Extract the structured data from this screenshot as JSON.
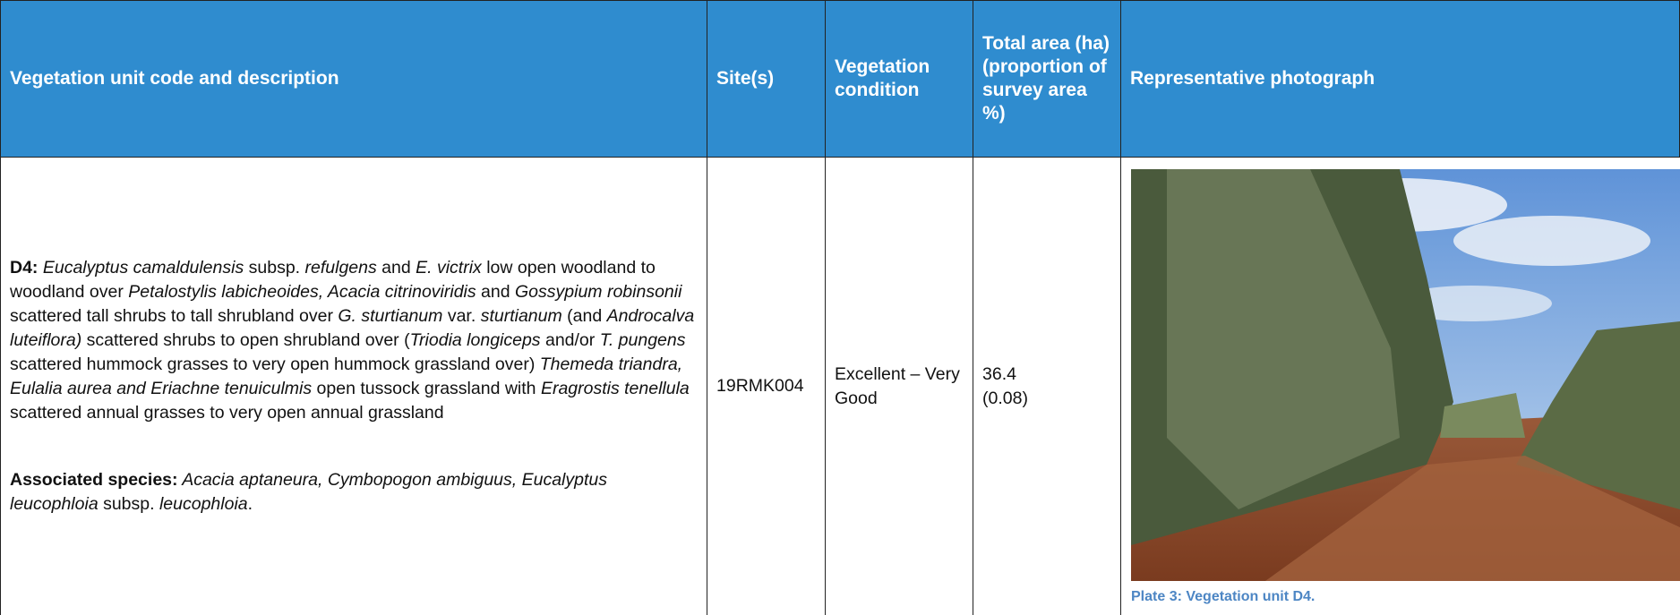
{
  "table": {
    "header": [
      "Vegetation unit code and description",
      "Site(s)",
      "Vegetation condition",
      "Total area (ha) (proportion of survey area %)",
      "Representative photograph"
    ],
    "rows": [
      {
        "description": [
          [
            {
              "style": "b",
              "text": "D4:"
            },
            {
              "style": "i",
              "text": " Eucalyptus camaldulensis"
            },
            {
              "style": "n",
              "text": " subsp. "
            },
            {
              "style": "i",
              "text": "refulgens"
            },
            {
              "style": "n",
              "text": " and "
            },
            {
              "style": "i",
              "text": "E. victrix"
            },
            {
              "style": "n",
              "text": " low open woodland to woodland over "
            },
            {
              "style": "i",
              "text": "Petalostylis labicheoides, Acacia citrinoviridis"
            },
            {
              "style": "n",
              "text": " and "
            },
            {
              "style": "i",
              "text": "Gossypium robinsonii"
            },
            {
              "style": "n",
              "text": " scattered tall shrubs to tall shrubland over  "
            },
            {
              "style": "i",
              "text": "G. sturtianum"
            },
            {
              "style": "n",
              "text": " var. "
            },
            {
              "style": "i",
              "text": "sturtianum"
            },
            {
              "style": "n",
              "text": " (and "
            },
            {
              "style": "i",
              "text": "Androcalva luteiflora)"
            },
            {
              "style": "n",
              "text": " scattered shrubs to open shrubland over ("
            },
            {
              "style": "i",
              "text": "Triodia longiceps"
            },
            {
              "style": "n",
              "text": " and/or "
            },
            {
              "style": "i",
              "text": "T. pungens"
            },
            {
              "style": "n",
              "text": " scattered hummock grasses to very open hummock grassland over) "
            },
            {
              "style": "i",
              "text": "Themeda triandra, Eulalia aurea and Eriachne tenuiculmis"
            },
            {
              "style": "n",
              "text": " open tussock grassland with "
            },
            {
              "style": "i",
              "text": "Eragrostis tenellula"
            },
            {
              "style": "n",
              "text": " scattered annual grasses to very open annual grassland"
            }
          ],
          [
            {
              "style": "b",
              "text": "Associated species:"
            },
            {
              "style": "i",
              "text": " Acacia aptaneura, Cymbopogon ambiguus, Eucalyptus leucophloia"
            },
            {
              "style": "n",
              "text": " subsp. "
            },
            {
              "style": "i",
              "text": "leucophloia"
            },
            {
              "style": "n",
              "text": "."
            }
          ]
        ],
        "sites": "19RMK004",
        "condition": "Excellent – Very Good",
        "area": "36.4",
        "proportion": "(0.08)",
        "caption": "Plate 3: Vegetation unit D4."
      }
    ]
  }
}
